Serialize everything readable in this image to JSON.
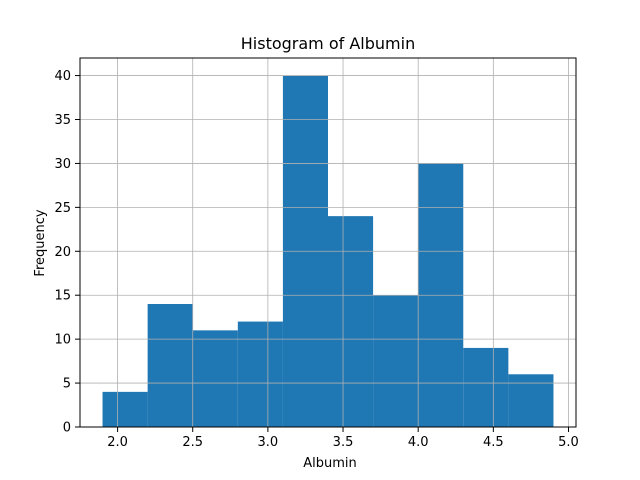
{
  "chart_data": {
    "type": "bar",
    "title": "Histogram of  Albumin",
    "xlabel": "Albumin",
    "ylabel": "Frequency",
    "bin_edges": [
      1.9,
      2.2,
      2.5,
      2.8,
      3.1,
      3.4,
      3.7,
      4.0,
      4.3,
      4.6,
      4.9
    ],
    "values": [
      4,
      14,
      11,
      12,
      40,
      24,
      15,
      30,
      9,
      6
    ],
    "xlim": [
      1.75,
      5.05
    ],
    "ylim": [
      0,
      42
    ],
    "xticks": [
      2.0,
      2.5,
      3.0,
      3.5,
      4.0,
      4.5,
      5.0
    ],
    "xtick_labels": [
      "2.0",
      "2.5",
      "3.0",
      "3.5",
      "4.0",
      "4.5",
      "5.0"
    ],
    "yticks": [
      0,
      5,
      10,
      15,
      20,
      25,
      30,
      35,
      40
    ],
    "ytick_labels": [
      "0",
      "5",
      "10",
      "15",
      "20",
      "25",
      "30",
      "35",
      "40"
    ],
    "grid": true,
    "bar_color": "#1f77b4",
    "grid_color": "#b0b0b0"
  }
}
